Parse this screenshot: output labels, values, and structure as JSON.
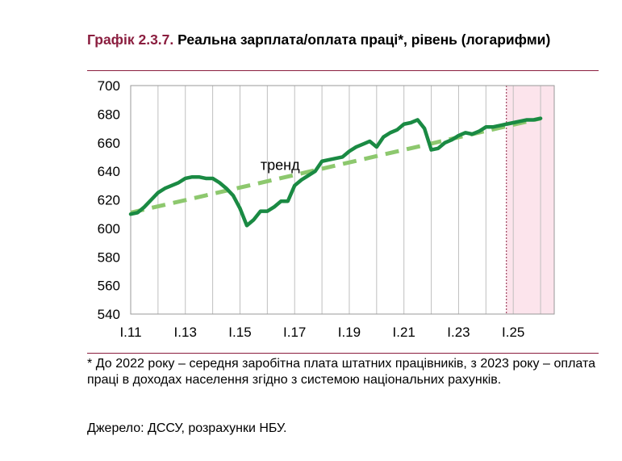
{
  "title": {
    "number": "Графік 2.3.7.",
    "text": "Реальна зарплата/оплата праці*, рівень (логарифми)"
  },
  "footnote": "* До 2022 року – середня заробітна плата штатних працівників, з 2023 року – оплата праці в доходах населення згідно з системою національних рахунків.",
  "source": "Джерело: ДССУ, розрахунки НБУ.",
  "colors": {
    "accent": "#8B1E3F",
    "actual_line": "#1A8A43",
    "trend_line": "#8DC86E",
    "forecast_shade": "#FCE4EC",
    "grid": "#BFBFBF"
  },
  "chart_data": {
    "type": "line",
    "ylim": [
      540,
      700
    ],
    "yticks": [
      540,
      560,
      580,
      600,
      620,
      640,
      660,
      680,
      700
    ],
    "xlim": [
      2011,
      2026.5
    ],
    "xtick_positions": [
      2011,
      2013,
      2015,
      2017,
      2019,
      2021,
      2023,
      2025
    ],
    "xtick_labels": [
      "I.11",
      "I.13",
      "I.15",
      "I.17",
      "I.19",
      "I.21",
      "I.23",
      "I.25"
    ],
    "grid": "vertical yearly lines",
    "forecast_start": 2024.75,
    "annotation": "тренд",
    "series": [
      {
        "style": "solid",
        "x": [
          2011.0,
          2011.25,
          2011.5,
          2011.75,
          2012.0,
          2012.25,
          2012.5,
          2012.75,
          2013.0,
          2013.25,
          2013.5,
          2013.75,
          2014.0,
          2014.25,
          2014.5,
          2014.75,
          2015.0,
          2015.25,
          2015.5,
          2015.75,
          2016.0,
          2016.25,
          2016.5,
          2016.75,
          2017.0,
          2017.25,
          2017.5,
          2017.75,
          2018.0,
          2018.25,
          2018.5,
          2018.75,
          2019.0,
          2019.25,
          2019.5,
          2019.75,
          2020.0,
          2020.25,
          2020.5,
          2020.75,
          2021.0,
          2021.25,
          2021.5,
          2021.75,
          2022.0,
          2022.25,
          2022.5,
          2022.75,
          2023.0,
          2023.25,
          2023.5,
          2023.75,
          2024.0,
          2024.25,
          2024.5,
          2024.75,
          2025.0,
          2025.25,
          2025.5,
          2025.75,
          2026.0
        ],
        "values": [
          610,
          611,
          615,
          620,
          625,
          628,
          630,
          632,
          635,
          636,
          636,
          635,
          635,
          632,
          628,
          623,
          614,
          602,
          606,
          612,
          612,
          615,
          619,
          619,
          630,
          634,
          637,
          640,
          647,
          648,
          649,
          650,
          654,
          657,
          659,
          661,
          657,
          664,
          667,
          669,
          673,
          674,
          676,
          670,
          655,
          656,
          660,
          662,
          665,
          667,
          666,
          668,
          671,
          671,
          672,
          673,
          674,
          675,
          676,
          676,
          677
        ]
      },
      {
        "style": "dashed",
        "x": [
          2011.0,
          2026.0
        ],
        "values": [
          611,
          677
        ]
      }
    ]
  }
}
